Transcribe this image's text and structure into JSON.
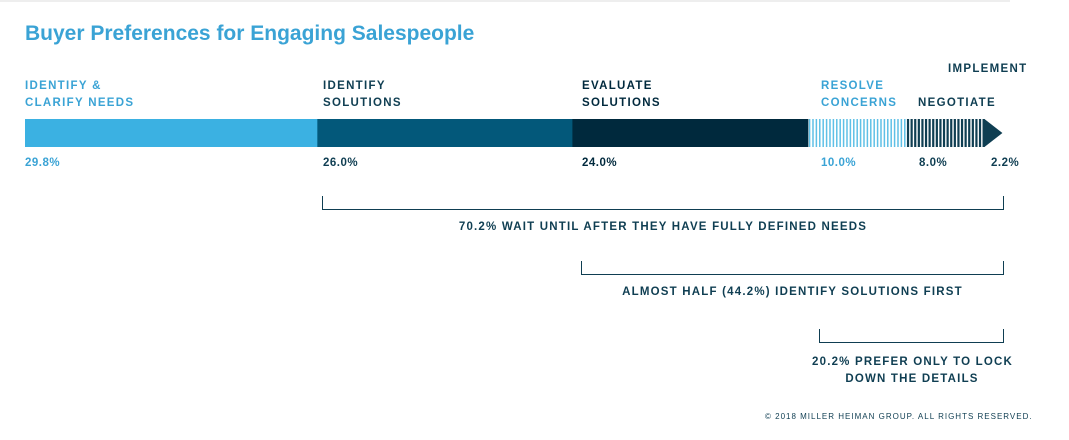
{
  "title": "Buyer Preferences for Engaging Salespeople",
  "stages": [
    {
      "line1": "IDENTIFY &",
      "line2": "CLARIFY NEEDS",
      "pct_label": "29.8%",
      "color": "#3bb1e2"
    },
    {
      "line1": "IDENTIFY",
      "line2": "SOLUTIONS",
      "pct_label": "26.0%",
      "color": "#03587a"
    },
    {
      "line1": "EVALUATE",
      "line2": "SOLUTIONS",
      "pct_label": "24.0%",
      "color": "#00293d"
    },
    {
      "line1": "RESOLVE",
      "line2": "CONCERNS",
      "pct_label": "10.0%",
      "color": "#5fc0e6"
    },
    {
      "line1": "",
      "line2": "NEGOTIATE",
      "pct_label": "8.0%",
      "color": "#0f3e52"
    },
    {
      "line1": "IMPLEMENT",
      "line2": "",
      "pct_label": "2.2%",
      "color": "#0f3e52"
    }
  ],
  "brackets": [
    {
      "line1": "70.2% WAIT UNTIL AFTER THEY HAVE FULLY DEFINED NEEDS",
      "line2": ""
    },
    {
      "line1": "ALMOST HALF (44.2%) IDENTIFY SOLUTIONS FIRST",
      "line2": ""
    },
    {
      "line1": "20.2% PREFER ONLY TO LOCK",
      "line2": "DOWN THE DETAILS"
    }
  ],
  "copyright": "© 2018 MILLER HEIMAN GROUP. ALL RIGHTS RESERVED.",
  "chart_data": {
    "type": "bar",
    "title": "Buyer Preferences for Engaging Salespeople",
    "categories": [
      "Identify & Clarify Needs",
      "Identify Solutions",
      "Evaluate Solutions",
      "Resolve Concerns",
      "Negotiate",
      "Implement"
    ],
    "values": [
      29.8,
      26.0,
      24.0,
      10.0,
      8.0,
      2.2
    ],
    "unit": "%",
    "stacked_horizontal": true
  }
}
